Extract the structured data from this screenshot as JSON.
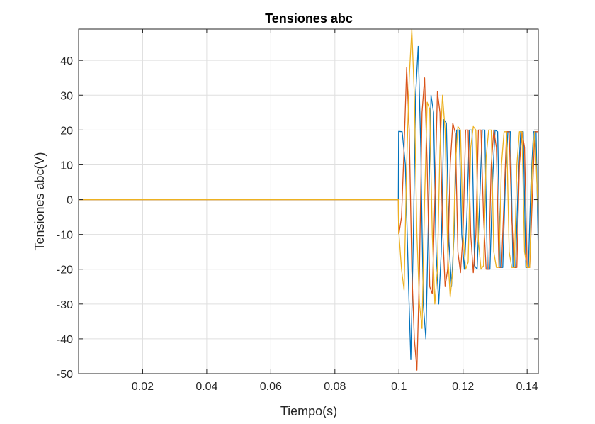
{
  "chart_data": {
    "type": "line",
    "title": "Tensiones abc",
    "xlabel": "Tiempo(s)",
    "ylabel": "Tensiones abc(V)",
    "xlim": [
      0,
      0.1435
    ],
    "ylim": [
      -50,
      49
    ],
    "xticks": [
      0.02,
      0.04,
      0.06,
      0.08,
      0.1,
      0.12,
      0.14
    ],
    "xtick_labels": [
      "0.02",
      "0.04",
      "0.06",
      "0.08",
      "0.1",
      "0.12",
      "0.14"
    ],
    "yticks": [
      -50,
      -40,
      -30,
      -20,
      -10,
      0,
      10,
      20,
      30,
      40
    ],
    "ytick_labels": [
      "-50",
      "-40",
      "-30",
      "-20",
      "-10",
      "0",
      "10",
      "20",
      "30",
      "40"
    ],
    "grid": true,
    "legend": "none",
    "colors": [
      "#0072BD",
      "#D95319",
      "#EDB120"
    ],
    "series": [
      {
        "color": "#0072BD",
        "x": [
          0,
          0.0998,
          0.0999,
          0.1,
          0.101,
          0.102,
          0.103,
          0.1037,
          0.1045,
          0.1052,
          0.106,
          0.1068,
          0.1076,
          0.1084,
          0.1092,
          0.11,
          0.1108,
          0.1116,
          0.1124,
          0.1132,
          0.114,
          0.1148,
          0.1156,
          0.1164,
          0.1172,
          0.118,
          0.1188,
          0.1196,
          0.1204,
          0.1212,
          0.122,
          0.1228,
          0.1236,
          0.1244,
          0.1252,
          0.126,
          0.1268,
          0.1276,
          0.1284,
          0.1292,
          0.13,
          0.1308,
          0.1316,
          0.1324,
          0.1332,
          0.134,
          0.1348,
          0.1356,
          0.1364,
          0.1372,
          0.138,
          0.1388,
          0.1396,
          0.1404,
          0.1412,
          0.142,
          0.1428,
          0.1435
        ],
        "y": [
          0,
          0,
          19.6,
          19.6,
          19.5,
          10,
          -25,
          -46,
          -10,
          30,
          44,
          15,
          -30,
          -40,
          -5,
          30,
          25,
          -15,
          -30,
          -15,
          23,
          22,
          -12,
          -25,
          -10,
          20,
          20,
          -10,
          -20,
          -5,
          20,
          20,
          -19,
          -20,
          0,
          20,
          20,
          -20,
          -20,
          5,
          20,
          19.5,
          -19.5,
          -19.5,
          5,
          19.5,
          19.5,
          -19.5,
          -19.5,
          5,
          19.5,
          19.5,
          -19.5,
          -19.5,
          5,
          19.5,
          19.5,
          -16
        ]
      },
      {
        "color": "#D95319",
        "x": [
          0,
          0.0998,
          0.0999,
          0.1,
          0.1008,
          0.1016,
          0.1024,
          0.1032,
          0.104,
          0.1048,
          0.1056,
          0.1064,
          0.1072,
          0.108,
          0.1088,
          0.1096,
          0.1104,
          0.1112,
          0.112,
          0.1128,
          0.1136,
          0.1144,
          0.1152,
          0.116,
          0.1168,
          0.1176,
          0.1184,
          0.1192,
          0.12,
          0.1208,
          0.1216,
          0.1224,
          0.1232,
          0.124,
          0.1248,
          0.1256,
          0.1264,
          0.1272,
          0.128,
          0.1288,
          0.1296,
          0.1304,
          0.1312,
          0.132,
          0.1328,
          0.1336,
          0.1344,
          0.1352,
          0.136,
          0.1368,
          0.1376,
          0.1384,
          0.1392,
          0.14,
          0.1408,
          0.1416,
          0.1424,
          0.1435
        ],
        "y": [
          0,
          0,
          -9.8,
          -9.8,
          -5,
          15,
          38,
          20,
          -20,
          -40,
          -49,
          -20,
          25,
          35,
          10,
          -25,
          -27,
          0,
          31,
          25,
          -8,
          -25,
          -20,
          10,
          22,
          19,
          -15,
          -21,
          -10,
          20,
          20,
          -10,
          -21,
          -10,
          20,
          20,
          -5,
          -20,
          -20,
          10,
          20,
          15,
          -19.5,
          -19.5,
          0,
          19.5,
          19.5,
          -5,
          -19.5,
          -19.5,
          10,
          19.5,
          15,
          -19.5,
          -19.5,
          0,
          19.5,
          19.5
        ]
      },
      {
        "color": "#EDB120",
        "x": [
          0,
          0.0998,
          0.0999,
          0.1,
          0.1008,
          0.1016,
          0.1024,
          0.1032,
          0.104,
          0.1048,
          0.1056,
          0.1064,
          0.1072,
          0.108,
          0.1088,
          0.1096,
          0.1104,
          0.1112,
          0.112,
          0.1128,
          0.1136,
          0.1144,
          0.1152,
          0.116,
          0.1168,
          0.1176,
          0.1184,
          0.1192,
          0.12,
          0.1208,
          0.1216,
          0.1224,
          0.1232,
          0.124,
          0.1248,
          0.1256,
          0.1264,
          0.1272,
          0.128,
          0.1288,
          0.1296,
          0.1304,
          0.1312,
          0.132,
          0.1328,
          0.1336,
          0.1344,
          0.1352,
          0.136,
          0.1368,
          0.1376,
          0.1384,
          0.1392,
          0.14,
          0.1408,
          0.1416,
          0.1424,
          0.1435
        ],
        "y": [
          0,
          0,
          -9.8,
          -9.8,
          -20,
          -26,
          10,
          35,
          49,
          30,
          -10,
          -30,
          -37,
          0,
          28,
          26,
          -10,
          -30,
          -20,
          15,
          30,
          20,
          -15,
          -28,
          -20,
          10,
          21,
          20,
          -10,
          -20,
          -18,
          15,
          21,
          20,
          -12,
          -20,
          -19,
          12,
          20,
          20,
          -15,
          -19.5,
          -19.5,
          10,
          19.5,
          19.5,
          -15,
          -19.5,
          -19.5,
          10,
          19.5,
          19.5,
          -15,
          -19.5,
          -19.5,
          10,
          19.5,
          -5
        ]
      }
    ]
  }
}
